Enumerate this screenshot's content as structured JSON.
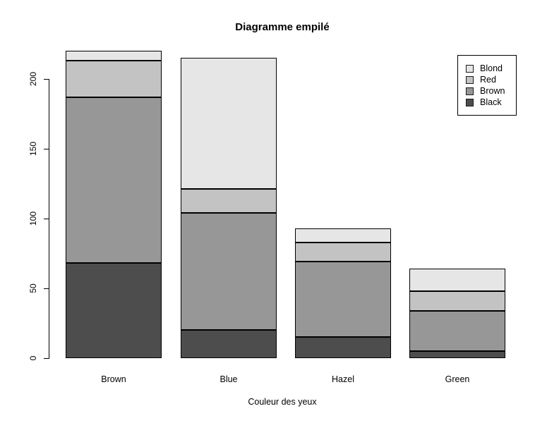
{
  "chart_data": {
    "type": "bar",
    "stacked": true,
    "title": "Diagramme empilé",
    "xlabel": "Couleur des yeux",
    "ylabel": "",
    "categories": [
      "Brown",
      "Blue",
      "Hazel",
      "Green"
    ],
    "series": [
      {
        "name": "Black",
        "color": "#4D4D4D",
        "values": [
          68,
          20,
          15,
          5
        ]
      },
      {
        "name": "Brown",
        "color": "#979797",
        "values": [
          119,
          84,
          54,
          29
        ]
      },
      {
        "name": "Red",
        "color": "#C3C3C3",
        "values": [
          26,
          17,
          14,
          14
        ]
      },
      {
        "name": "Blond",
        "color": "#E6E6E6",
        "values": [
          7,
          94,
          10,
          16
        ]
      }
    ],
    "yticks": [
      0,
      50,
      100,
      150,
      200
    ],
    "ylim": [
      0,
      222
    ],
    "grid": false,
    "legend": {
      "position": "top-right",
      "entries": [
        "Blond",
        "Red",
        "Brown",
        "Black"
      ]
    },
    "colors": {
      "bar_border": "#000000",
      "background": "#ffffff",
      "text": "#000000"
    }
  }
}
